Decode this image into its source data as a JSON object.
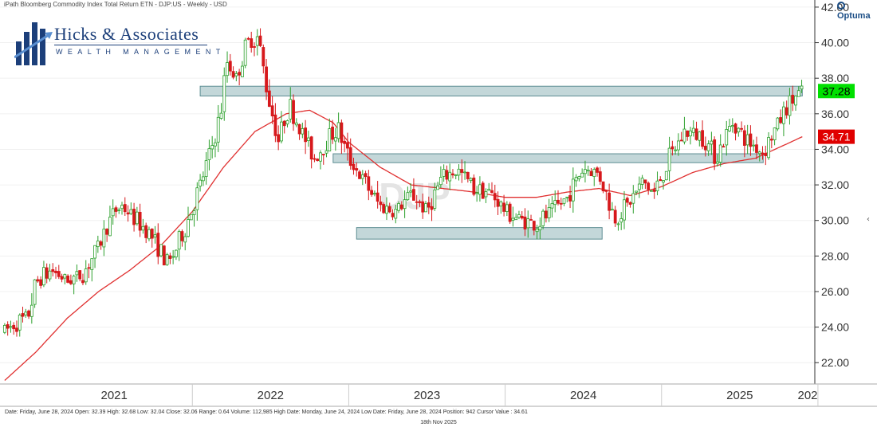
{
  "header": {
    "title": "iPath Bloomberg Commodity Index Total Return ETN - DJP:US - Weekly - USD",
    "brand": "Optuma"
  },
  "logo": {
    "name": "Hicks & Associates",
    "tagline": "WEALTH MANAGEMENT"
  },
  "status_bar": {
    "text": "Date: Friday, June 28, 2024 Open: 32.39 High: 32.68 Low: 32.04 Close: 32.06 Range: 0.64 Volume: 112,985 High Date: Monday, June 24, 2024 Low Date: Friday, June 28, 2024 Position: 942 Cursor Value : 34.61",
    "date": "18th Nov 2025"
  },
  "colors": {
    "up": "#2ca02c",
    "down": "#d7191c",
    "ma_line": "#e03030",
    "zone_fill": "#a9c6c9",
    "last_price_bg": "#00e000",
    "ma_value_bg": "#e00000"
  },
  "watermark": "DJP",
  "chart_data": {
    "type": "candlestick",
    "title": "iPath Bloomberg Commodity Index Total Return ETN - DJP:US - Weekly - USD",
    "timeframe": "Weekly",
    "x_start": "2020-10",
    "x_end": "2025-11",
    "x_ticks": [
      "2021",
      "2022",
      "2023",
      "2024",
      "2025",
      "202"
    ],
    "ylim": [
      20.8,
      42.4
    ],
    "y_ticks": [
      "22.00",
      "24.00",
      "26.00",
      "28.00",
      "30.00",
      "32.00",
      "34.00",
      "36.00",
      "38.00",
      "40.00",
      "42.00"
    ],
    "last_price": "37.28",
    "moving_average_value": "34.71",
    "series_points": [
      [
        2020.8,
        23.8
      ],
      [
        2020.95,
        24.6
      ],
      [
        2021.0,
        26.5
      ],
      [
        2021.1,
        27.2
      ],
      [
        2021.2,
        26.6
      ],
      [
        2021.3,
        27.0
      ],
      [
        2021.4,
        28.5
      ],
      [
        2021.5,
        30.5
      ],
      [
        2021.55,
        30.8
      ],
      [
        2021.65,
        30.0
      ],
      [
        2021.75,
        29.0
      ],
      [
        2021.85,
        27.5
      ],
      [
        2021.95,
        29.5
      ],
      [
        2022.05,
        32.0
      ],
      [
        2022.12,
        34.0
      ],
      [
        2022.18,
        36.0
      ],
      [
        2022.22,
        39.0
      ],
      [
        2022.28,
        38.0
      ],
      [
        2022.35,
        40.0
      ],
      [
        2022.42,
        40.3
      ],
      [
        2022.48,
        37.2
      ],
      [
        2022.55,
        34.5
      ],
      [
        2022.62,
        36.5
      ],
      [
        2022.7,
        35.0
      ],
      [
        2022.78,
        33.5
      ],
      [
        2022.86,
        34.5
      ],
      [
        2022.93,
        35.2
      ],
      [
        2023.0,
        33.5
      ],
      [
        2023.1,
        32.2
      ],
      [
        2023.2,
        30.8
      ],
      [
        2023.3,
        30.5
      ],
      [
        2023.4,
        31.5
      ],
      [
        2023.5,
        30.5
      ],
      [
        2023.6,
        32.5
      ],
      [
        2023.7,
        32.8
      ],
      [
        2023.8,
        31.8
      ],
      [
        2023.9,
        31.6
      ],
      [
        2024.0,
        30.6
      ],
      [
        2024.1,
        30.0
      ],
      [
        2024.2,
        29.8
      ],
      [
        2024.3,
        30.5
      ],
      [
        2024.4,
        31.3
      ],
      [
        2024.5,
        33.0
      ],
      [
        2024.6,
        32.6
      ],
      [
        2024.7,
        30.2
      ],
      [
        2024.78,
        30.8
      ],
      [
        2024.88,
        32.2
      ],
      [
        2024.95,
        31.5
      ],
      [
        2025.05,
        33.5
      ],
      [
        2025.15,
        35.0
      ],
      [
        2025.25,
        34.8
      ],
      [
        2025.35,
        33.6
      ],
      [
        2025.45,
        35.5
      ],
      [
        2025.55,
        34.5
      ],
      [
        2025.65,
        33.8
      ],
      [
        2025.72,
        35.0
      ],
      [
        2025.8,
        36.3
      ],
      [
        2025.86,
        37.0
      ],
      [
        2025.9,
        37.28
      ]
    ],
    "moving_average_points": [
      [
        2020.8,
        21.0
      ],
      [
        2021.0,
        22.6
      ],
      [
        2021.2,
        24.5
      ],
      [
        2021.4,
        26.0
      ],
      [
        2021.6,
        27.2
      ],
      [
        2021.8,
        28.6
      ],
      [
        2022.0,
        30.5
      ],
      [
        2022.2,
        33.0
      ],
      [
        2022.4,
        35.0
      ],
      [
        2022.6,
        36.0
      ],
      [
        2022.75,
        36.2
      ],
      [
        2022.9,
        35.5
      ],
      [
        2023.0,
        34.4
      ],
      [
        2023.2,
        33.0
      ],
      [
        2023.4,
        32.0
      ],
      [
        2023.6,
        31.8
      ],
      [
        2023.8,
        31.6
      ],
      [
        2024.0,
        31.3
      ],
      [
        2024.2,
        31.3
      ],
      [
        2024.4,
        31.6
      ],
      [
        2024.6,
        31.8
      ],
      [
        2024.8,
        31.4
      ],
      [
        2025.0,
        31.9
      ],
      [
        2025.2,
        32.7
      ],
      [
        2025.4,
        33.2
      ],
      [
        2025.6,
        33.5
      ],
      [
        2025.8,
        34.3
      ],
      [
        2025.9,
        34.71
      ]
    ],
    "zones": [
      {
        "x_start": 2022.05,
        "x_end": 2025.9,
        "y_low": 37.0,
        "y_high": 37.55
      },
      {
        "x_start": 2022.9,
        "x_end": 2025.65,
        "y_low": 33.25,
        "y_high": 33.75
      },
      {
        "x_start": 2023.05,
        "x_end": 2024.62,
        "y_low": 28.95,
        "y_high": 29.6
      }
    ]
  }
}
